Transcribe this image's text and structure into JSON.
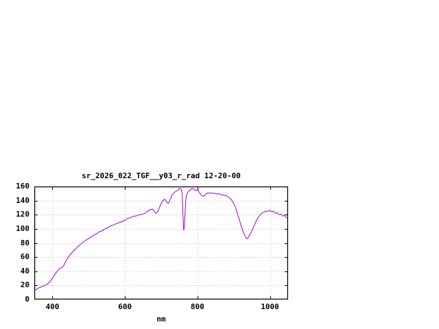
{
  "page": {
    "background": "#ffffff"
  },
  "chart_data": {
    "type": "line",
    "title": "sr_2026_022_TGF__y03_r_rad 12-20-00",
    "xlabel": "nm",
    "ylabel": "",
    "xlim": [
      350,
      1050
    ],
    "ylim": [
      0,
      160
    ],
    "xticks": [
      400,
      600,
      800,
      1000
    ],
    "yticks": [
      0,
      20,
      40,
      60,
      80,
      100,
      120,
      140,
      160
    ],
    "grid": true,
    "legend": "none",
    "line_color": "#9400d3",
    "border_color": "#000000",
    "grid_color": "#b4b4b4",
    "points": [
      [
        350,
        13
      ],
      [
        355,
        14
      ],
      [
        360,
        16
      ],
      [
        365,
        17
      ],
      [
        370,
        18
      ],
      [
        375,
        19
      ],
      [
        380,
        20
      ],
      [
        385,
        21
      ],
      [
        390,
        24
      ],
      [
        395,
        26
      ],
      [
        400,
        30
      ],
      [
        405,
        34
      ],
      [
        410,
        38
      ],
      [
        415,
        41
      ],
      [
        420,
        44
      ],
      [
        425,
        45
      ],
      [
        430,
        47
      ],
      [
        435,
        52
      ],
      [
        440,
        57
      ],
      [
        445,
        61
      ],
      [
        450,
        64
      ],
      [
        455,
        67
      ],
      [
        460,
        70
      ],
      [
        465,
        72
      ],
      [
        470,
        75
      ],
      [
        475,
        77
      ],
      [
        480,
        79
      ],
      [
        485,
        81
      ],
      [
        490,
        83
      ],
      [
        495,
        85
      ],
      [
        500,
        86
      ],
      [
        505,
        88
      ],
      [
        510,
        90
      ],
      [
        515,
        91
      ],
      [
        520,
        93
      ],
      [
        525,
        94
      ],
      [
        530,
        96
      ],
      [
        535,
        97
      ],
      [
        540,
        98
      ],
      [
        545,
        100
      ],
      [
        550,
        101
      ],
      [
        555,
        102
      ],
      [
        560,
        104
      ],
      [
        565,
        105
      ],
      [
        570,
        106
      ],
      [
        575,
        107
      ],
      [
        580,
        108
      ],
      [
        585,
        109
      ],
      [
        590,
        110
      ],
      [
        595,
        111
      ],
      [
        600,
        112
      ],
      [
        605,
        114
      ],
      [
        610,
        115
      ],
      [
        615,
        116
      ],
      [
        620,
        117
      ],
      [
        625,
        118
      ],
      [
        630,
        118
      ],
      [
        635,
        119
      ],
      [
        640,
        120
      ],
      [
        645,
        120
      ],
      [
        650,
        121
      ],
      [
        655,
        122
      ],
      [
        660,
        124
      ],
      [
        665,
        126
      ],
      [
        670,
        127
      ],
      [
        675,
        128
      ],
      [
        680,
        126
      ],
      [
        685,
        122
      ],
      [
        690,
        124
      ],
      [
        695,
        130
      ],
      [
        700,
        136
      ],
      [
        705,
        140
      ],
      [
        710,
        142
      ],
      [
        715,
        138
      ],
      [
        720,
        136
      ],
      [
        725,
        142
      ],
      [
        730,
        148
      ],
      [
        735,
        151
      ],
      [
        740,
        153
      ],
      [
        745,
        154
      ],
      [
        748,
        156
      ],
      [
        752,
        157
      ],
      [
        755,
        156
      ],
      [
        758,
        150
      ],
      [
        760,
        120
      ],
      [
        762,
        98
      ],
      [
        764,
        104
      ],
      [
        766,
        125
      ],
      [
        768,
        140
      ],
      [
        770,
        148
      ],
      [
        775,
        153
      ],
      [
        780,
        155
      ],
      [
        785,
        157
      ],
      [
        790,
        156
      ],
      [
        795,
        154
      ],
      [
        800,
        155
      ],
      [
        805,
        152
      ],
      [
        810,
        148
      ],
      [
        815,
        146
      ],
      [
        820,
        147
      ],
      [
        825,
        150
      ],
      [
        830,
        151
      ],
      [
        835,
        150
      ],
      [
        840,
        151
      ],
      [
        845,
        150
      ],
      [
        850,
        150
      ],
      [
        855,
        149
      ],
      [
        860,
        150
      ],
      [
        865,
        148
      ],
      [
        870,
        148
      ],
      [
        875,
        147
      ],
      [
        880,
        147
      ],
      [
        885,
        145
      ],
      [
        890,
        143
      ],
      [
        895,
        140
      ],
      [
        900,
        136
      ],
      [
        905,
        130
      ],
      [
        910,
        122
      ],
      [
        915,
        114
      ],
      [
        920,
        105
      ],
      [
        925,
        97
      ],
      [
        930,
        91
      ],
      [
        935,
        87
      ],
      [
        938,
        86
      ],
      [
        940,
        88
      ],
      [
        945,
        92
      ],
      [
        950,
        97
      ],
      [
        955,
        103
      ],
      [
        960,
        109
      ],
      [
        965,
        114
      ],
      [
        970,
        118
      ],
      [
        975,
        121
      ],
      [
        980,
        123
      ],
      [
        985,
        124
      ],
      [
        990,
        125
      ],
      [
        995,
        125
      ],
      [
        1000,
        126
      ],
      [
        1005,
        124
      ],
      [
        1010,
        125
      ],
      [
        1015,
        122
      ],
      [
        1020,
        123
      ],
      [
        1025,
        120
      ],
      [
        1030,
        121
      ],
      [
        1035,
        118
      ],
      [
        1040,
        119
      ],
      [
        1045,
        116
      ],
      [
        1050,
        117
      ]
    ]
  }
}
